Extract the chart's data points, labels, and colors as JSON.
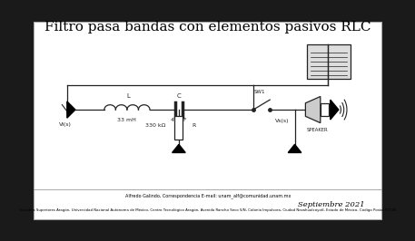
{
  "title": "Filtro pasa bandas con elementos pasivos RLC",
  "title_fontsize": 11,
  "date_text": "Septiembre 2021",
  "footer_line1": "Alfredo Galindo, Correspondencia E-mail: unam_alf@comunidad.unam.mx",
  "footer_line2": "Estudios Superiores Aragón, Universidad Nacional Autónoma de México, Centro Tecnológico Aragón, Avenida Rancho Seco S/N, Colonia Impulsora, Ciudad Nezahualcóyotl, Estado de México, Código Postal 57130",
  "outer_bg": "#1a1a1a",
  "inner_bg": "#ffffff",
  "component_color": "#222222",
  "label_L": "L",
  "label_L_val": "33 mH",
  "label_C": "C",
  "label_C_val": "47 nF",
  "label_R": "R",
  "label_R_val": "330 kΩ",
  "label_SW1": "SW1",
  "label_Vi": "Vi(s)",
  "label_Vs": "Vs(s)",
  "label_SPEAKER": "SPEAKER"
}
